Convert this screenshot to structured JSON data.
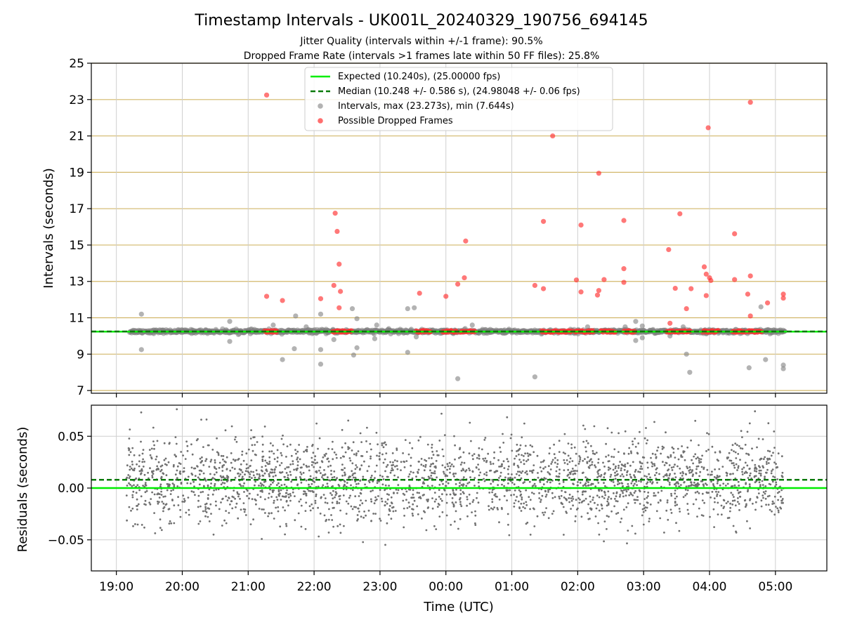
{
  "figure": {
    "title": "Timestamp Intervals - UK001L_20240329_190756_694145",
    "subtitle_1": "Jitter Quality (intervals within +/-1 frame): 90.5%",
    "subtitle_2": "Dropped Frame Rate (intervals >1 frames late within 50 FF files): 25.8%"
  },
  "chart_data": [
    {
      "type": "scatter",
      "ylabel": "Intervals (seconds)",
      "ylim": [
        6.85,
        25
      ],
      "yticks": [
        7,
        9,
        11,
        13,
        15,
        17,
        19,
        21,
        23,
        25
      ],
      "xlim_hours": [
        18.62,
        29.78
      ],
      "hline_grid_color": "#d2b76a",
      "legend": {
        "placement": "upper-center",
        "entries": [
          {
            "label": "Expected (10.240s), (25.00000 fps)",
            "kind": "line-solid",
            "color": "#00ee00"
          },
          {
            "label": "Median (10.248 +/- 0.586 s), (24.98048 +/- 0.06 fps)",
            "kind": "line-dashed",
            "color": "#0a7a0a"
          },
          {
            "label": "Intervals, max (23.273s), min (7.644s)",
            "kind": "marker",
            "color": "#808080"
          },
          {
            "label": "Possible Dropped Frames",
            "kind": "marker",
            "color": "#ff3030"
          }
        ]
      },
      "expected": 10.24,
      "median": 10.248,
      "baseline_range_hours": [
        19.2,
        29.15
      ],
      "gray_outliers": [
        [
          19.38,
          11.2
        ],
        [
          19.38,
          9.25
        ],
        [
          20.72,
          10.8
        ],
        [
          20.72,
          9.7
        ],
        [
          21.38,
          10.6
        ],
        [
          21.52,
          8.7
        ],
        [
          21.72,
          11.1
        ],
        [
          21.7,
          9.3
        ],
        [
          21.88,
          10.5
        ],
        [
          22.1,
          11.2
        ],
        [
          22.1,
          9.25
        ],
        [
          22.1,
          8.45
        ],
        [
          22.3,
          9.8
        ],
        [
          22.58,
          11.5
        ],
        [
          22.65,
          10.95
        ],
        [
          22.65,
          9.35
        ],
        [
          22.6,
          8.95
        ],
        [
          22.95,
          10.6
        ],
        [
          22.92,
          9.85
        ],
        [
          23.42,
          11.5
        ],
        [
          23.42,
          9.1
        ],
        [
          23.52,
          11.55
        ],
        [
          23.55,
          9.95
        ],
        [
          24.18,
          7.65
        ],
        [
          24.4,
          10.6
        ],
        [
          25.35,
          7.75
        ],
        [
          26.15,
          10.5
        ],
        [
          26.72,
          10.5
        ],
        [
          26.88,
          10.8
        ],
        [
          26.88,
          9.75
        ],
        [
          26.98,
          10.55
        ],
        [
          26.98,
          9.9
        ],
        [
          27.4,
          10.0
        ],
        [
          27.6,
          10.5
        ],
        [
          27.65,
          9.0
        ],
        [
          27.7,
          8.0
        ],
        [
          28.6,
          8.25
        ],
        [
          28.78,
          11.6
        ],
        [
          28.85,
          8.7
        ],
        [
          29.12,
          8.4
        ],
        [
          29.12,
          8.2
        ]
      ],
      "dropped_frames": [
        [
          21.28,
          23.25
        ],
        [
          21.28,
          12.18
        ],
        [
          21.52,
          11.95
        ],
        [
          22.1,
          12.05
        ],
        [
          22.32,
          16.75
        ],
        [
          22.35,
          15.75
        ],
        [
          22.38,
          13.95
        ],
        [
          22.3,
          12.78
        ],
        [
          22.4,
          12.45
        ],
        [
          22.38,
          11.55
        ],
        [
          23.6,
          12.35
        ],
        [
          24.0,
          12.18
        ],
        [
          24.18,
          12.85
        ],
        [
          24.28,
          13.2
        ],
        [
          24.3,
          15.22
        ],
        [
          25.35,
          12.78
        ],
        [
          25.48,
          12.6
        ],
        [
          25.48,
          16.3
        ],
        [
          25.62,
          21.0
        ],
        [
          25.98,
          13.08
        ],
        [
          26.05,
          12.42
        ],
        [
          26.05,
          16.1
        ],
        [
          26.3,
          12.25
        ],
        [
          26.32,
          12.5
        ],
        [
          26.32,
          18.95
        ],
        [
          26.4,
          13.1
        ],
        [
          26.7,
          16.35
        ],
        [
          26.7,
          13.7
        ],
        [
          26.7,
          12.95
        ],
        [
          27.38,
          14.75
        ],
        [
          27.4,
          10.7
        ],
        [
          27.48,
          12.62
        ],
        [
          27.55,
          16.72
        ],
        [
          27.65,
          11.5
        ],
        [
          27.72,
          12.6
        ],
        [
          27.92,
          13.8
        ],
        [
          27.95,
          13.4
        ],
        [
          27.95,
          12.22
        ],
        [
          27.98,
          21.45
        ],
        [
          28.0,
          13.2
        ],
        [
          28.02,
          13.05
        ],
        [
          28.38,
          15.62
        ],
        [
          28.38,
          13.1
        ],
        [
          28.58,
          12.3
        ],
        [
          28.62,
          22.85
        ],
        [
          28.62,
          13.3
        ],
        [
          28.62,
          11.1
        ],
        [
          28.88,
          11.82
        ],
        [
          29.12,
          12.3
        ],
        [
          29.12,
          12.08
        ]
      ],
      "dropped_clusters_hours": [
        [
          21.25,
          21.45
        ],
        [
          22.28,
          22.58
        ],
        [
          23.55,
          23.78
        ],
        [
          23.95,
          24.18
        ],
        [
          24.22,
          24.45
        ],
        [
          25.45,
          25.92
        ],
        [
          25.95,
          26.25
        ],
        [
          26.35,
          26.58
        ],
        [
          26.7,
          26.88
        ],
        [
          27.35,
          27.72
        ],
        [
          27.9,
          28.15
        ],
        [
          28.35,
          28.55
        ],
        [
          28.58,
          28.8
        ]
      ]
    },
    {
      "type": "scatter",
      "xlabel": "Time (UTC)",
      "ylabel": "Residuals (seconds)",
      "ylim": [
        -0.08,
        0.08
      ],
      "yticks": [
        0.05,
        0.0,
        -0.05
      ],
      "ytick_labels": [
        "0.05",
        "0.00",
        "−0.05"
      ],
      "expected_residual": 0.0,
      "median_residual": 0.008,
      "residual_range_hours": [
        19.15,
        29.12
      ]
    }
  ],
  "x_axis": {
    "tick_hours": [
      19,
      20,
      21,
      22,
      23,
      24,
      25,
      26,
      27,
      28,
      29
    ],
    "tick_labels": [
      "19:00",
      "20:00",
      "21:00",
      "22:00",
      "23:00",
      "00:00",
      "01:00",
      "02:00",
      "03:00",
      "04:00",
      "05:00"
    ]
  }
}
